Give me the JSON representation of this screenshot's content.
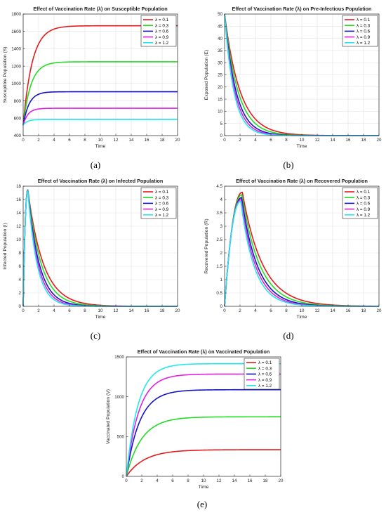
{
  "series_colors": [
    "#e41a1c",
    "#22dd22",
    "#1515c8",
    "#e020e0",
    "#22e8ee"
  ],
  "chart_data": [
    {
      "id": "a",
      "type": "line",
      "caption": "(a)",
      "title": "Effect of Vaccination Rate (λ) on Susceptible Population",
      "xlabel": "Time",
      "ylabel": "Susceptible Population (S)",
      "xlim": [
        0,
        20
      ],
      "ylim": [
        400,
        1800
      ],
      "xticks": [
        0,
        2,
        4,
        6,
        8,
        10,
        12,
        14,
        16,
        18,
        20
      ],
      "yticks": [
        400,
        600,
        800,
        1000,
        1200,
        1400,
        1600,
        1800
      ],
      "grid": true,
      "legend_position": "top-right",
      "model": "sat",
      "y0": 520,
      "series": [
        {
          "name": "λ = 0.1",
          "final": 1665,
          "rate": 0.85
        },
        {
          "name": "λ = 0.3",
          "final": 1250,
          "rate": 1.0
        },
        {
          "name": "λ = 0.6",
          "final": 905,
          "rate": 1.3
        },
        {
          "name": "λ = 0.9",
          "final": 715,
          "rate": 1.6
        },
        {
          "name": "λ = 1.2",
          "final": 585,
          "rate": 1.9
        }
      ]
    },
    {
      "id": "b",
      "type": "line",
      "caption": "(b)",
      "title": "Effect of Vaccination Rate (λ) on Pre-Infectious Population",
      "xlabel": "Time",
      "ylabel": "Exposed Population (E)",
      "xlim": [
        0,
        20
      ],
      "ylim": [
        0,
        50
      ],
      "xticks": [
        0,
        2,
        4,
        6,
        8,
        10,
        12,
        14,
        16,
        18,
        20
      ],
      "yticks": [
        0,
        5,
        10,
        15,
        20,
        25,
        30,
        35,
        40,
        45,
        50
      ],
      "grid": true,
      "legend_position": "top-right",
      "model": "decay",
      "y0": 50,
      "series": [
        {
          "name": "λ = 0.1",
          "rate": 0.5
        },
        {
          "name": "λ = 0.3",
          "rate": 0.58
        },
        {
          "name": "λ = 0.6",
          "rate": 0.68
        },
        {
          "name": "λ = 0.9",
          "rate": 0.76
        },
        {
          "name": "λ = 1.2",
          "rate": 0.84
        }
      ]
    },
    {
      "id": "c",
      "type": "line",
      "caption": "(c)",
      "title": "Effect of Vaccination Rate (λ) on Infected Population",
      "xlabel": "Time",
      "ylabel": "Infected Population (I)",
      "xlim": [
        0,
        20
      ],
      "ylim": [
        0,
        18
      ],
      "xticks": [
        0,
        2,
        4,
        6,
        8,
        10,
        12,
        14,
        16,
        18,
        20
      ],
      "yticks": [
        0,
        2,
        4,
        6,
        8,
        10,
        12,
        14,
        16,
        18
      ],
      "grid": true,
      "legend_position": "top-right",
      "model": "peak",
      "series": [
        {
          "name": "λ = 0.1",
          "peak": 17.5,
          "tpeak": 0.6,
          "k2": 0.5
        },
        {
          "name": "λ = 0.3",
          "peak": 17.5,
          "tpeak": 0.6,
          "k2": 0.58
        },
        {
          "name": "λ = 0.6",
          "peak": 17.45,
          "tpeak": 0.6,
          "k2": 0.68
        },
        {
          "name": "λ = 0.9",
          "peak": 17.4,
          "tpeak": 0.6,
          "k2": 0.76
        },
        {
          "name": "λ = 1.2",
          "peak": 17.35,
          "tpeak": 0.6,
          "k2": 0.84
        }
      ]
    },
    {
      "id": "d",
      "type": "line",
      "caption": "(d)",
      "title": "Effect of Vaccination Rate (λ) on Recovered Population",
      "xlabel": "Time",
      "ylabel": "Recovered Population (R)",
      "xlim": [
        0,
        20
      ],
      "ylim": [
        0,
        4.5
      ],
      "xticks": [
        0,
        2,
        4,
        6,
        8,
        10,
        12,
        14,
        16,
        18,
        20
      ],
      "yticks": [
        0,
        0.5,
        1,
        1.5,
        2,
        2.5,
        3,
        3.5,
        4,
        4.5
      ],
      "grid": true,
      "legend_position": "top-right",
      "model": "peak",
      "series": [
        {
          "name": "λ = 0.1",
          "peak": 4.27,
          "tpeak": 2.3,
          "k2": 0.38
        },
        {
          "name": "λ = 0.3",
          "peak": 4.18,
          "tpeak": 2.25,
          "k2": 0.43
        },
        {
          "name": "λ = 0.6",
          "peak": 4.07,
          "tpeak": 2.2,
          "k2": 0.48
        },
        {
          "name": "λ = 0.9",
          "peak": 4.0,
          "tpeak": 2.15,
          "k2": 0.52
        },
        {
          "name": "λ = 1.2",
          "peak": 3.93,
          "tpeak": 2.1,
          "k2": 0.56
        }
      ]
    },
    {
      "id": "e",
      "type": "line",
      "caption": "(e)",
      "title": "Effect of Vaccination Rate (λ) on Vaccinated Population",
      "xlabel": "Time",
      "ylabel": "Vaccinated Population (V)",
      "xlim": [
        0,
        20
      ],
      "ylim": [
        0,
        1500
      ],
      "xticks": [
        0,
        2,
        4,
        6,
        8,
        10,
        12,
        14,
        16,
        18,
        20
      ],
      "yticks": [
        0,
        500,
        1000,
        1500
      ],
      "grid": false,
      "legend_position": "top-right",
      "model": "sat",
      "y0": 0,
      "series": [
        {
          "name": "λ = 0.1",
          "final": 335,
          "rate": 0.42
        },
        {
          "name": "λ = 0.3",
          "final": 748,
          "rate": 0.5
        },
        {
          "name": "λ = 0.6",
          "final": 1088,
          "rate": 0.58
        },
        {
          "name": "λ = 0.9",
          "final": 1285,
          "rate": 0.62
        },
        {
          "name": "λ = 1.2",
          "final": 1415,
          "rate": 0.66
        }
      ]
    }
  ]
}
